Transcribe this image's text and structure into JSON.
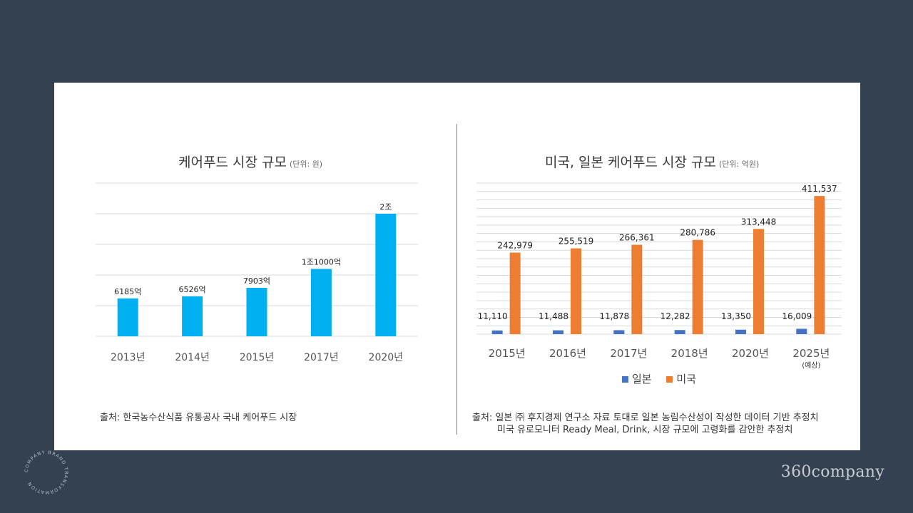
{
  "left_chart": {
    "title": "케어푸드 시장 규모",
    "unit": "(단위: 원)",
    "source": "출처: 한국농수산식품 유통공사 국내 케어푸드 시장"
  },
  "right_chart": {
    "title": "미국, 일본 케어푸드 시장 규모",
    "unit": "(단위: 억원)",
    "source_line1": "출처: 일본 ㈜ 후지경제 연구소 자료 토대로 일본 농림수산성이 작성한 데이터 기반 추정치",
    "source_line2": "미국 유로모니터 Ready Meal, Drink, 시장 규모에 고령화를 감안한 추정치",
    "legend": [
      "일본",
      "미국"
    ]
  },
  "brand": "360company",
  "badge_text": "COMPANY BRAND TRANSFORMATION",
  "colors": {
    "bar_blue": "#00b0f0",
    "japan": "#4472c4",
    "usa": "#ed7d31",
    "grid": "#d9d9d9"
  },
  "chart_data": [
    {
      "type": "bar",
      "title": "케어푸드 시장 규모",
      "categories": [
        "2013년",
        "2014년",
        "2015년",
        "2017년",
        "2020년"
      ],
      "values": [
        6185,
        6526,
        7903,
        11000,
        20000
      ],
      "data_labels": [
        "6185억",
        "6526억",
        "7903억",
        "1조1000억",
        "2조"
      ],
      "ylim": [
        0,
        25000
      ],
      "grid": true
    },
    {
      "type": "bar",
      "title": "미국, 일본 케어푸드 시장 규모",
      "categories": [
        "2015년",
        "2016년",
        "2017년",
        "2018년",
        "2020년",
        "2025년"
      ],
      "category_notes": [
        "",
        "",
        "",
        "",
        "",
        "(예상)"
      ],
      "series": [
        {
          "name": "일본",
          "values": [
            11110,
            11488,
            11878,
            12282,
            13350,
            16009
          ],
          "labels": [
            "11,110",
            "11,488",
            "11,878",
            "12,282",
            "13,350",
            "16,009"
          ]
        },
        {
          "name": "미국",
          "values": [
            242979,
            255519,
            266361,
            280786,
            313448,
            411537
          ],
          "labels": [
            "242,979",
            "255,519",
            "266,361",
            "280,786",
            "313,448",
            "411,537"
          ]
        }
      ],
      "ylim": [
        0,
        450000
      ],
      "grid": true
    }
  ]
}
